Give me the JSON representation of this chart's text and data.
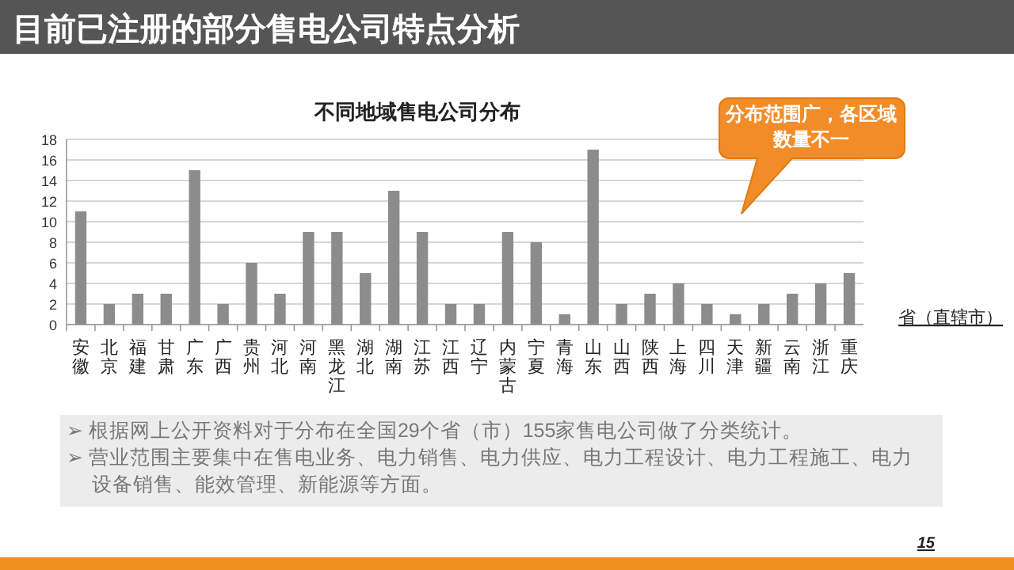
{
  "chart_data": {
    "type": "bar",
    "title": "目前已注册的部分售电公司特点分析",
    "subtitle": "不同地域售电公司分布",
    "xlabel": "省（直辖市）",
    "categories": [
      "安徽",
      "北京",
      "福建",
      "甘肃",
      "广东",
      "广西",
      "贵州",
      "河北",
      "河南",
      "黑龙江",
      "湖北",
      "湖南",
      "江苏",
      "江西",
      "辽宁",
      "内蒙古",
      "宁夏",
      "青海",
      "山东",
      "山西",
      "陕西",
      "上海",
      "四川",
      "天津",
      "新疆",
      "云南",
      "浙江",
      "重庆"
    ],
    "values": [
      11,
      2,
      3,
      3,
      15,
      2,
      6,
      3,
      9,
      9,
      5,
      13,
      9,
      2,
      2,
      9,
      8,
      1,
      17,
      2,
      3,
      4,
      2,
      1,
      2,
      3,
      4,
      5
    ],
    "color": "#8c8c8c",
    "ylim": [
      0,
      18
    ],
    "yticks": [
      0,
      2,
      4,
      6,
      8,
      10,
      12,
      14,
      16,
      18
    ],
    "grid": "y",
    "annotations": [
      "分布范围广，各区域数量不一",
      "➢ 根据网上公开资料对于分布在全国29个省（市）155家售电公司做了分类统计。",
      "➢ 营业范围主要集中在售电业务、电力销售、电力供应、电力工程设计、电力工程施工、电力设备销售、能效管理、新能源等方面。",
      "15"
    ]
  }
}
